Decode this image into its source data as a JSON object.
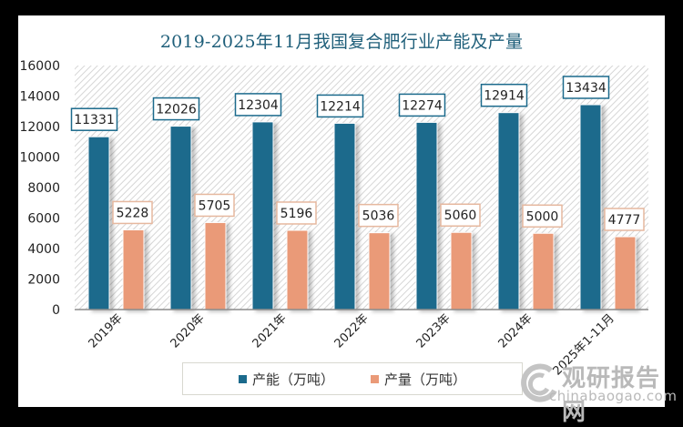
{
  "chart_data": {
    "type": "bar",
    "title": "2019-2025年11月我国复合肥行业产能及产量",
    "xlabel": "",
    "ylabel": "",
    "ylim": [
      0,
      16000
    ],
    "yticks": [
      0,
      2000,
      4000,
      6000,
      8000,
      10000,
      12000,
      14000,
      16000
    ],
    "grid": false,
    "legend_position": "bottom",
    "categories": [
      "2019年",
      "2020年",
      "2021年",
      "2022年",
      "2023年",
      "2024年",
      "2025年1-11月"
    ],
    "series": [
      {
        "name": "产能（万吨）",
        "color": "#1b6a8c",
        "label_border": "#1b6a8c",
        "values": [
          11331,
          12026,
          12304,
          12214,
          12274,
          12914,
          13434
        ]
      },
      {
        "name": "产量（万吨）",
        "color": "#ea9a78",
        "label_border": "#e6b89f",
        "values": [
          5228,
          5705,
          5196,
          5036,
          5060,
          5000,
          4777
        ]
      }
    ]
  },
  "watermark": {
    "name": "观研报告网",
    "url": "chinabaogao.com"
  }
}
